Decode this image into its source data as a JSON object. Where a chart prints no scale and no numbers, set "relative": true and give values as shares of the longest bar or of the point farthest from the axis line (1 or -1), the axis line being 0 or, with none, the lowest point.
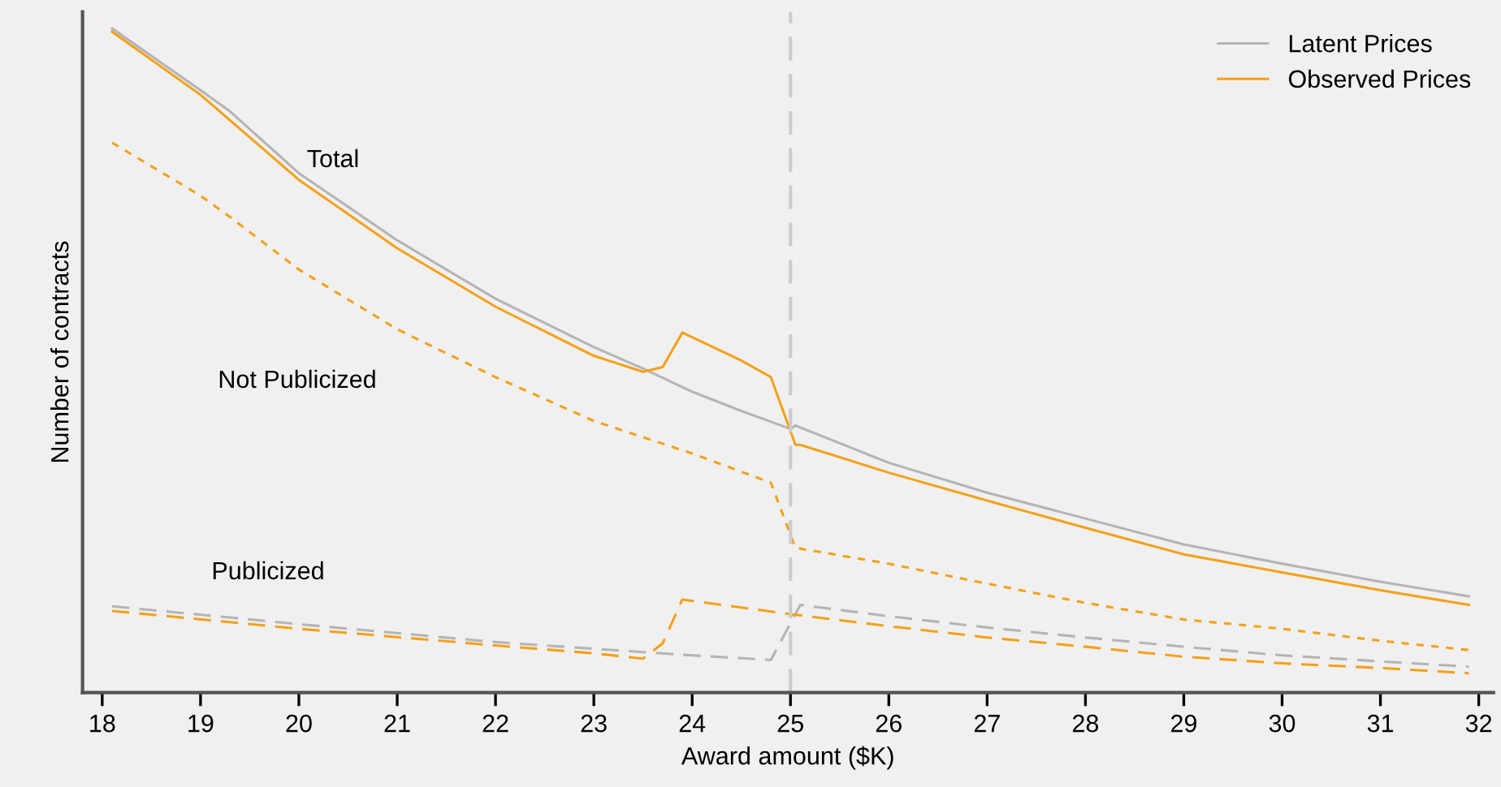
{
  "chart_data": {
    "type": "line",
    "relative": true,
    "xlabel": "Award amount ($K)",
    "ylabel": "Number of contracts",
    "xlim": [
      17.8,
      32.15
    ],
    "xticks": [
      18,
      19,
      20,
      21,
      22,
      23,
      24,
      25,
      26,
      27,
      28,
      29,
      30,
      31,
      32
    ],
    "legend": "top right",
    "grid": false,
    "series": [
      {
        "name": "Latent Prices",
        "color": "#b4b4b4",
        "line_style": "solid",
        "x": [
          18.1,
          19,
          19.3,
          20,
          21,
          22,
          23,
          23.5,
          24,
          24.5,
          25,
          25.05,
          26,
          27,
          28,
          29,
          30,
          31,
          31.9
        ],
        "values": [
          1.0,
          0.907,
          0.875,
          0.782,
          0.681,
          0.593,
          0.52,
          0.488,
          0.453,
          0.424,
          0.397,
          0.402,
          0.346,
          0.301,
          0.262,
          0.223,
          0.194,
          0.167,
          0.145
        ]
      },
      {
        "name": "Observed Prices",
        "color": "#f5a01a",
        "line_style": "solid",
        "x": [
          18.1,
          19,
          20,
          21,
          22,
          23,
          23.5,
          23.7,
          23.9,
          24.5,
          24.8,
          25.05,
          25.1,
          26,
          27,
          28,
          29,
          30,
          31,
          31.9
        ],
        "values": [
          0.995,
          0.9,
          0.772,
          0.669,
          0.581,
          0.507,
          0.483,
          0.49,
          0.542,
          0.5,
          0.475,
          0.373,
          0.373,
          0.331,
          0.289,
          0.248,
          0.208,
          0.181,
          0.154,
          0.132
        ]
      },
      {
        "color": "#f5a01a",
        "line_style": "dotted",
        "x": [
          18.1,
          19,
          19.3,
          20,
          21,
          22,
          23,
          24,
          24.8,
          25.05,
          26,
          27,
          28,
          29,
          30,
          31,
          31.9
        ],
        "values": [
          0.828,
          0.748,
          0.716,
          0.637,
          0.547,
          0.475,
          0.409,
          0.36,
          0.316,
          0.218,
          0.194,
          0.164,
          0.135,
          0.11,
          0.096,
          0.078,
          0.064
        ]
      },
      {
        "color": "#b4b4b4",
        "line_style": "dashed",
        "x": [
          18.1,
          20,
          22,
          23,
          24,
          24.8,
          25.1,
          26,
          27,
          28,
          29,
          30,
          31,
          31.9
        ],
        "values": [
          0.13,
          0.103,
          0.076,
          0.066,
          0.056,
          0.049,
          0.132,
          0.115,
          0.098,
          0.083,
          0.069,
          0.056,
          0.047,
          0.039
        ]
      },
      {
        "color": "#f5a01a",
        "line_style": "dashed",
        "x": [
          18.1,
          20,
          22,
          23,
          23.5,
          23.7,
          23.9,
          25,
          26,
          27,
          28,
          29,
          30,
          31,
          31.9
        ],
        "values": [
          0.123,
          0.096,
          0.071,
          0.059,
          0.051,
          0.074,
          0.14,
          0.118,
          0.1,
          0.083,
          0.069,
          0.054,
          0.044,
          0.037,
          0.029
        ]
      }
    ],
    "ref_lines": [
      {
        "axis": "x",
        "value": 25,
        "color": "#cccccc",
        "line_style": "dashed"
      }
    ],
    "annotations": [
      "Total",
      "Not Publicized",
      "Publicized"
    ]
  }
}
